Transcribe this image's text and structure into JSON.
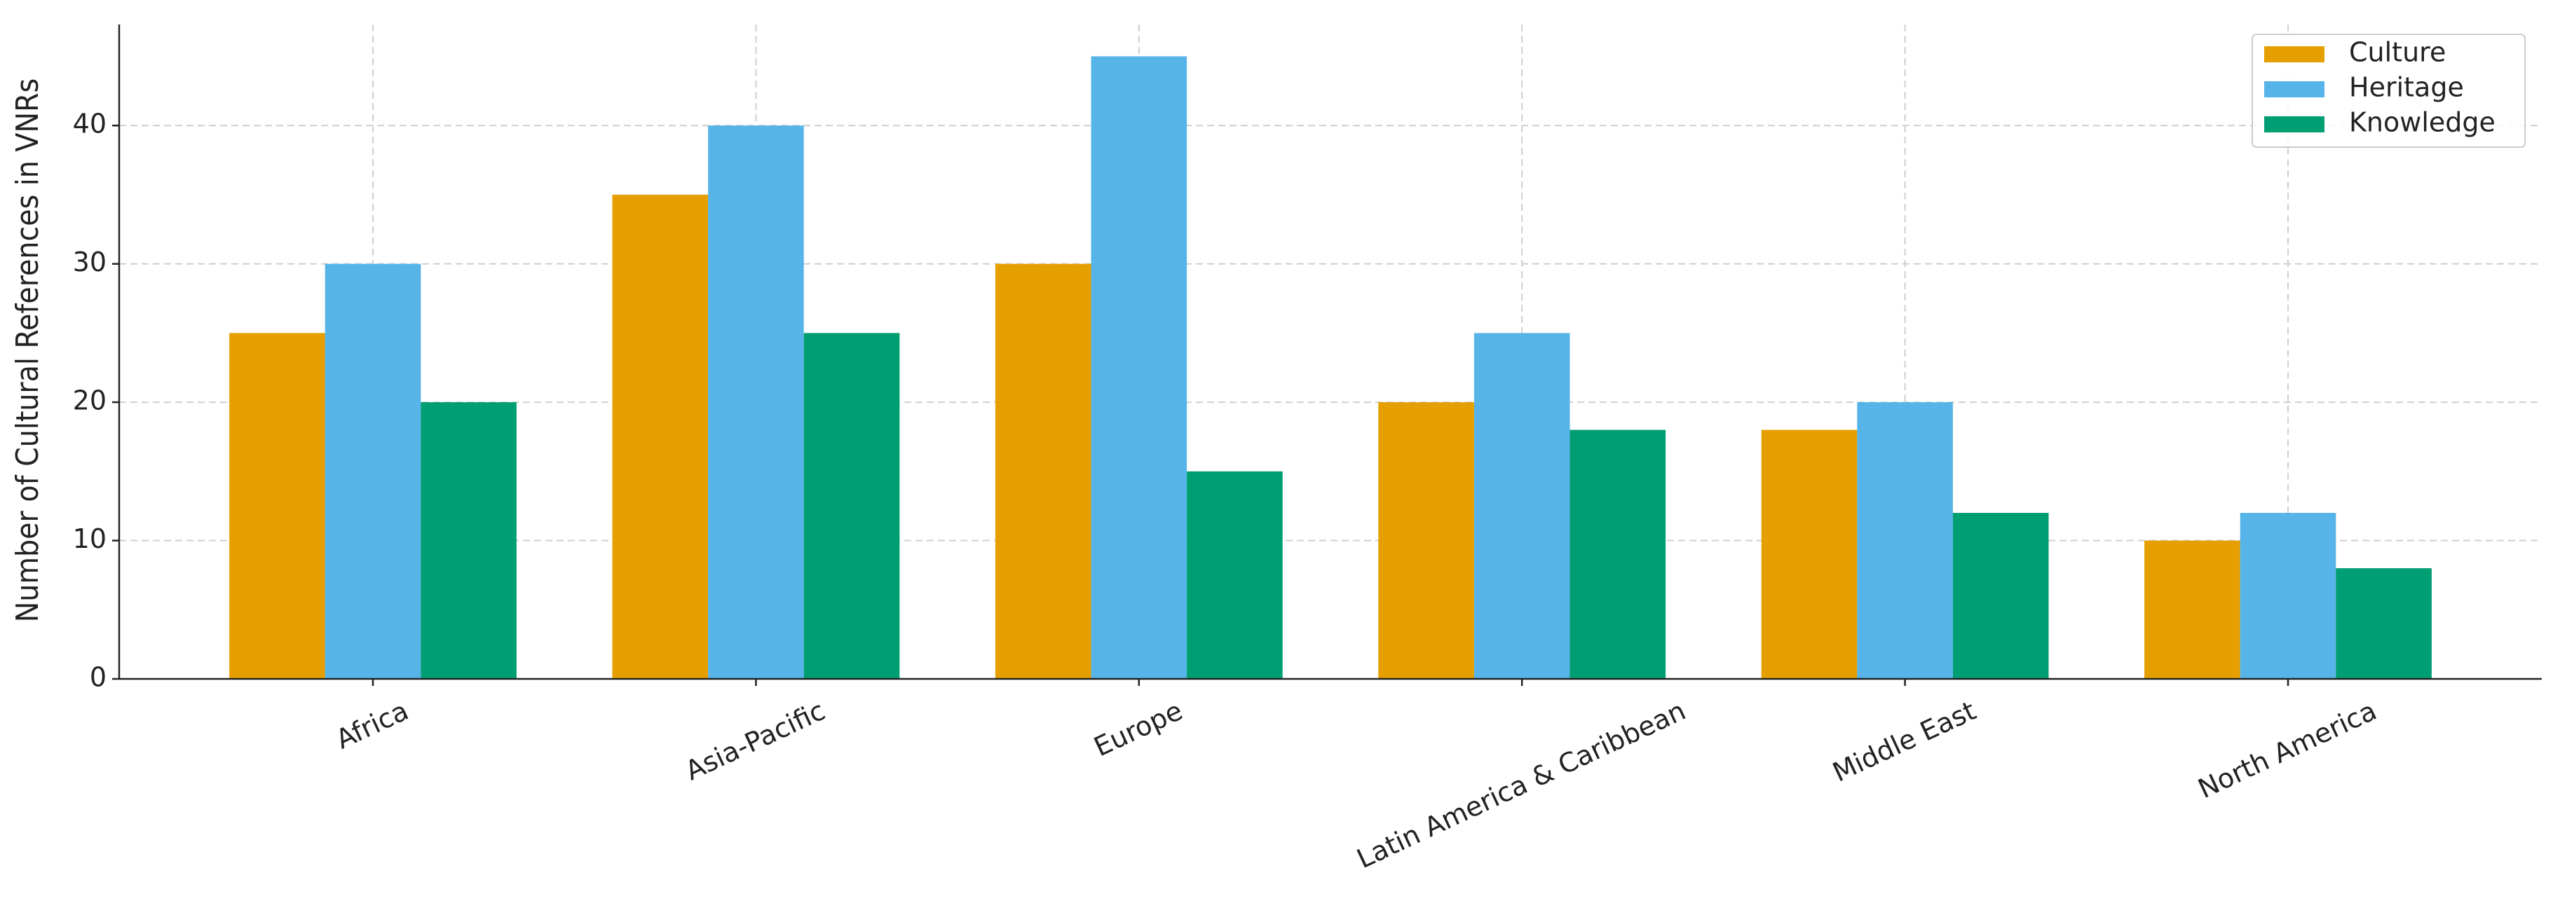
{
  "chart_data": {
    "type": "bar",
    "y_label": "Number of Cultural References in VNRs",
    "categories": [
      "Africa",
      "Asia-Pacific",
      "Europe",
      "Latin America & Caribbean",
      "Middle East",
      "North America"
    ],
    "series": [
      {
        "name": "Culture",
        "color": "#E69F00",
        "values": [
          25,
          35,
          30,
          20,
          18,
          10
        ]
      },
      {
        "name": "Heritage",
        "color": "#56B4E9",
        "values": [
          30,
          40,
          45,
          25,
          20,
          12
        ]
      },
      {
        "name": "Knowledge",
        "color": "#009E73",
        "values": [
          20,
          25,
          15,
          18,
          12,
          8
        ]
      }
    ],
    "ylim": [
      0,
      47.3
    ],
    "yticks": [
      0,
      10,
      20,
      30,
      40
    ],
    "grid": true,
    "legend": "upper right"
  }
}
